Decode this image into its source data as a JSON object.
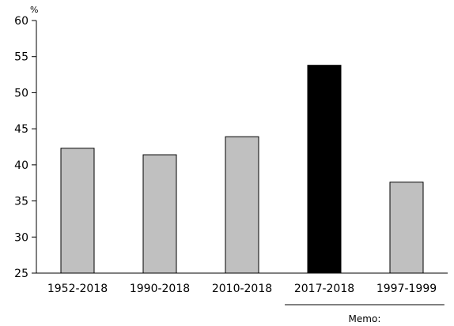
{
  "chart_data": {
    "type": "bar",
    "title": "",
    "xlabel": "",
    "ylabel": "",
    "y_unit": "%",
    "categories": [
      "1952-2018",
      "1990-2018",
      "2010-2018",
      "2017-2018",
      "1997-1999"
    ],
    "values": [
      42.3,
      41.4,
      43.9,
      53.8,
      37.6
    ],
    "bar_colors": [
      "#c0c0c0",
      "#c0c0c0",
      "#c0c0c0",
      "#000000",
      "#c0c0c0"
    ],
    "ylim": [
      25,
      60
    ],
    "yticks": [
      "25",
      "30",
      "35",
      "40",
      "45",
      "50",
      "55",
      "60"
    ],
    "grid": false,
    "legend": "none",
    "annotation": {
      "text": "Memo:",
      "applies_to": [
        "2017-2018",
        "1997-1999"
      ]
    }
  }
}
